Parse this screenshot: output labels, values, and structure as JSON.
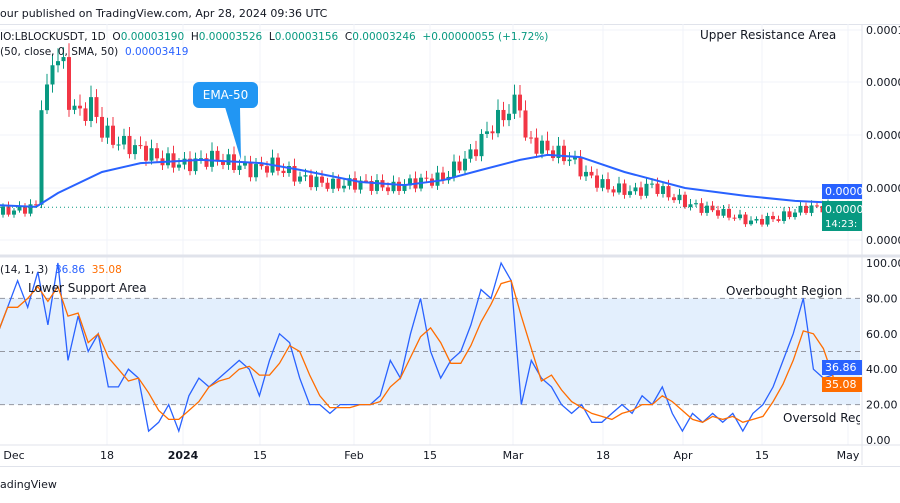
{
  "header": {
    "published": "our published on TradingView.com, Apr 28, 2024 09:36 UTC"
  },
  "legend": {
    "symbol": "IO:LBLOCKUSDT, 1D",
    "o_label": "O",
    "o": "0.00003190",
    "h_label": "H",
    "h": "0.00003526",
    "l_label": "L",
    "l": "0.00003156",
    "c_label": "C",
    "c": "0.00003246",
    "change": "+0.00000055 (+1.72%)",
    "ema_title": "(50, close, 0, SMA, 50)",
    "ema_value": "0.00003419",
    "stoch_title": "(14, 1, 3)",
    "stoch_k": "36.86",
    "stoch_d": "35.08"
  },
  "annotations": {
    "upper": "Upper Resistance Area",
    "ema_callout": "EMA-50",
    "lower": "Lower Support Area",
    "overbought": "Overbought Region",
    "oversold": "Oversold Regi"
  },
  "price_axis": {
    "ticks": [
      "0.0001",
      "0.0000",
      "0.0000",
      "0.0000",
      "0.0000"
    ],
    "ema_label": "0.0000",
    "price_label": "0.0000",
    "countdown": "14:23:"
  },
  "stoch_axis": {
    "ticks": [
      "100.00",
      "80.00",
      "60.00",
      "40.00",
      "20.00",
      "0.00"
    ]
  },
  "time_axis": {
    "ticks": [
      "Dec",
      "18",
      "2024",
      "15",
      "Feb",
      "15",
      "Mar",
      "18",
      "Apr",
      "15",
      "May"
    ]
  },
  "footer": {
    "brand": "adingView"
  },
  "colors": {
    "up": "#089981",
    "down": "#f23645",
    "ema": "#2962ff",
    "k": "#2962ff",
    "d": "#ff6d00",
    "band": "#e3effd",
    "callout": "#2196f3"
  },
  "chart_data": [
    {
      "type": "candlestick",
      "ylim": [
        1e-05,
        0.0001
      ],
      "close_keypoints": [
        [
          "2023-11-28",
          3.07e-05
        ],
        [
          "2023-12-02",
          3.14e-05
        ],
        [
          "2023-12-05",
          3.3e-05
        ],
        [
          "2023-12-06",
          7.33e-05
        ],
        [
          "2023-12-07",
          7.5e-05
        ],
        [
          "2023-12-08",
          8.86e-05
        ],
        [
          "2023-12-09",
          9.05e-05
        ],
        [
          "2023-12-10",
          8.48e-05
        ],
        [
          "2023-12-11",
          7.33e-05
        ],
        [
          "2023-12-13",
          6.76e-05
        ],
        [
          "2023-12-15",
          7.14e-05
        ],
        [
          "2023-12-17",
          6.19e-05
        ],
        [
          "2023-12-19",
          5.81e-05
        ],
        [
          "2023-12-24",
          5.43e-05
        ],
        [
          "2023-12-28",
          5.05e-05
        ],
        [
          "2024-01-01",
          4.86e-05
        ],
        [
          "2024-01-06",
          5.12e-05
        ],
        [
          "2024-01-09",
          4.97e-05
        ],
        [
          "2024-01-13",
          4.67e-05
        ],
        [
          "2024-01-17",
          4.86e-05
        ],
        [
          "2024-01-22",
          4.36e-05
        ],
        [
          "2024-01-28",
          4.09e-05
        ],
        [
          "2024-02-02",
          4.17e-05
        ],
        [
          "2024-02-08",
          3.98e-05
        ],
        [
          "2024-02-12",
          4.21e-05
        ],
        [
          "2024-02-17",
          4.36e-05
        ],
        [
          "2024-02-22",
          5.24e-05
        ],
        [
          "2024-02-26",
          6.38e-05
        ],
        [
          "2024-02-29",
          6.95e-05
        ],
        [
          "2024-03-02",
          7.33e-05
        ],
        [
          "2024-03-03",
          5.81e-05
        ],
        [
          "2024-03-07",
          5.43e-05
        ],
        [
          "2024-03-11",
          5.12e-05
        ],
        [
          "2024-03-14",
          4.48e-05
        ],
        [
          "2024-03-18",
          3.98e-05
        ],
        [
          "2024-03-23",
          3.83e-05
        ],
        [
          "2024-03-26",
          4.09e-05
        ],
        [
          "2024-03-29",
          3.71e-05
        ],
        [
          "2024-04-02",
          3.33e-05
        ],
        [
          "2024-04-07",
          3.07e-05
        ],
        [
          "2024-04-13",
          2.69e-05
        ],
        [
          "2024-04-18",
          2.84e-05
        ],
        [
          "2024-04-23",
          3.22e-05
        ],
        [
          "2024-04-28",
          3.246e-05
        ]
      ],
      "ema_keypoints": [
        [
          "2023-11-28",
          3.33e-05
        ],
        [
          "2023-12-05",
          3.26e-05
        ],
        [
          "2023-12-09",
          3.79e-05
        ],
        [
          "2023-12-17",
          4.59e-05
        ],
        [
          "2023-12-24",
          4.93e-05
        ],
        [
          "2024-01-04",
          5.05e-05
        ],
        [
          "2024-01-15",
          4.93e-05
        ],
        [
          "2024-01-22",
          4.67e-05
        ],
        [
          "2024-02-02",
          4.21e-05
        ],
        [
          "2024-02-10",
          4.09e-05
        ],
        [
          "2024-02-17",
          4.28e-05
        ],
        [
          "2024-02-24",
          4.67e-05
        ],
        [
          "2024-03-02",
          5.05e-05
        ],
        [
          "2024-03-07",
          5.24e-05
        ],
        [
          "2024-03-13",
          5.16e-05
        ],
        [
          "2024-03-21",
          4.59e-05
        ],
        [
          "2024-04-01",
          3.98e-05
        ],
        [
          "2024-04-12",
          3.68e-05
        ],
        [
          "2024-04-21",
          3.49e-05
        ],
        [
          "2024-04-28",
          3.419e-05
        ]
      ]
    },
    {
      "type": "line",
      "ylim": [
        0,
        100
      ],
      "levels": [
        80,
        50,
        20
      ],
      "x_range": [
        "2023-11-28",
        "2024-04-28"
      ],
      "k_values": [
        60,
        75,
        90,
        75,
        95,
        65,
        100,
        45,
        70,
        50,
        60,
        30,
        30,
        40,
        35,
        5,
        10,
        20,
        5,
        25,
        35,
        30,
        35,
        40,
        45,
        40,
        25,
        45,
        60,
        55,
        35,
        20,
        20,
        15,
        20,
        20,
        20,
        20,
        25,
        45,
        35,
        60,
        80,
        50,
        35,
        45,
        50,
        65,
        85,
        80,
        100,
        90,
        20,
        45,
        35,
        30,
        20,
        15,
        20,
        10,
        10,
        15,
        20,
        15,
        25,
        20,
        30,
        15,
        5,
        15,
        10,
        15,
        10,
        15,
        5,
        15,
        20,
        30,
        45,
        60,
        80,
        40,
        35,
        36.86
      ],
      "d_last": 35.08
    }
  ]
}
